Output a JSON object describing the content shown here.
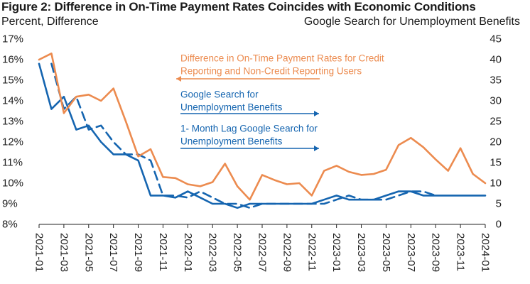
{
  "figure": {
    "title": "Figure 2: Difference in On-Time Payment Rates Coincides with Economic Conditions",
    "left_axis_title": "Percent, Difference",
    "right_axis_title": "Google Search for Unemployment Benefits"
  },
  "colors": {
    "orange": "#ec8b4f",
    "blue": "#1565b0",
    "axis": "#222222"
  },
  "chart_data": {
    "type": "line",
    "x_ticks": [
      "2021-01",
      "2021-03",
      "2021-05",
      "2021-07",
      "2021-09",
      "2021-11",
      "2022-01",
      "2022-03",
      "2022-05",
      "2022-07",
      "2022-09",
      "2022-11",
      "2023-01",
      "2023-03",
      "2023-05",
      "2023-07",
      "2023-09",
      "2023-11",
      "2024-01"
    ],
    "y_left": {
      "label": "Percent, Difference",
      "ticks": [
        "8%",
        "9%",
        "10%",
        "11%",
        "12%",
        "13%",
        "14%",
        "15%",
        "16%",
        "17%"
      ],
      "lim": [
        8,
        17
      ]
    },
    "y_right": {
      "label": "Google Search for Unemployment Benefits",
      "ticks": [
        "0",
        "5",
        "10",
        "15",
        "20",
        "25",
        "30",
        "35",
        "40",
        "45"
      ],
      "lim": [
        0,
        45
      ]
    },
    "series": [
      {
        "name": "Difference in On-Time Payment Rates for Credit Reporting and Non-Credit Reporting Users",
        "axis": "left",
        "style": "solid",
        "color": "orange",
        "x": [
          "2021-01",
          "2021-02",
          "2021-03",
          "2021-04",
          "2021-05",
          "2021-06",
          "2021-07",
          "2021-08",
          "2021-09",
          "2021-10",
          "2021-11",
          "2021-12",
          "2022-01",
          "2022-02",
          "2022-03",
          "2022-04",
          "2022-05",
          "2022-06",
          "2022-07",
          "2022-08",
          "2022-09",
          "2022-10",
          "2022-11",
          "2022-12",
          "2023-01",
          "2023-02",
          "2023-03",
          "2023-04",
          "2023-05",
          "2023-06",
          "2023-07",
          "2023-08",
          "2023-09",
          "2023-10",
          "2023-11",
          "2023-12",
          "2024-01"
        ],
        "y": [
          16.0,
          16.3,
          13.4,
          14.2,
          14.3,
          14.0,
          14.6,
          13.0,
          11.3,
          11.65,
          10.3,
          10.25,
          9.95,
          9.85,
          10.05,
          10.95,
          9.85,
          9.2,
          10.4,
          10.15,
          9.95,
          10.0,
          9.4,
          10.6,
          10.85,
          10.55,
          10.4,
          10.45,
          10.65,
          11.85,
          12.2,
          11.75,
          11.15,
          10.6,
          11.7,
          10.45,
          10.0
        ]
      },
      {
        "name": "Google Search for Unemployment Benefits",
        "axis": "right",
        "style": "solid",
        "color": "blue",
        "x": [
          "2021-01",
          "2021-02",
          "2021-03",
          "2021-04",
          "2021-05",
          "2021-06",
          "2021-07",
          "2021-08",
          "2021-09",
          "2021-10",
          "2021-11",
          "2021-12",
          "2022-01",
          "2022-02",
          "2022-03",
          "2022-04",
          "2022-05",
          "2022-06",
          "2022-07",
          "2022-08",
          "2022-09",
          "2022-10",
          "2022-11",
          "2022-12",
          "2023-01",
          "2023-02",
          "2023-03",
          "2023-04",
          "2023-05",
          "2023-06",
          "2023-07",
          "2023-08",
          "2023-09",
          "2023-10",
          "2023-11",
          "2023-12",
          "2024-01"
        ],
        "y": [
          39,
          28,
          31,
          23,
          24,
          20,
          17,
          17,
          15.5,
          7,
          7,
          6.5,
          8,
          6.5,
          5,
          5,
          4,
          5,
          5,
          5,
          5,
          5,
          5,
          6,
          7,
          6,
          6,
          6,
          7,
          8,
          8,
          7,
          7,
          7,
          7,
          7,
          7
        ]
      },
      {
        "name": "1- Month Lag Google Search for Unemployment Benefits",
        "axis": "right",
        "style": "dashed",
        "color": "blue",
        "x": [
          "2021-02",
          "2021-03",
          "2021-04",
          "2021-05",
          "2021-06",
          "2021-07",
          "2021-08",
          "2021-09",
          "2021-10",
          "2021-11",
          "2021-12",
          "2022-01",
          "2022-02",
          "2022-03",
          "2022-04",
          "2022-05",
          "2022-06",
          "2022-07",
          "2022-08",
          "2022-09",
          "2022-10",
          "2022-11",
          "2022-12",
          "2023-01",
          "2023-02",
          "2023-03",
          "2023-04",
          "2023-05",
          "2023-06",
          "2023-07",
          "2023-08",
          "2023-09"
        ],
        "y": [
          39,
          28,
          31,
          23,
          24,
          20,
          17,
          17,
          15.5,
          7,
          7,
          6.5,
          8,
          6.5,
          5,
          5,
          4,
          5,
          5,
          5,
          5,
          5,
          5,
          6,
          7,
          6,
          6,
          6,
          7,
          8,
          8,
          7
        ]
      }
    ],
    "annotations": [
      {
        "lines": [
          "Difference in On-Time Payment Rates for Credit",
          "Reporting and Non-Credit Reporting Users"
        ],
        "color": "orange",
        "arrow": "left"
      },
      {
        "lines": [
          "Google Search for",
          "Unemployment Benefits"
        ],
        "color": "blue",
        "arrow": "right"
      },
      {
        "lines": [
          "1- Month Lag Google Search for",
          "Unemployment Benefits"
        ],
        "color": "blue",
        "arrow": "right"
      }
    ],
    "grid": false,
    "legend": "inline annotations"
  }
}
